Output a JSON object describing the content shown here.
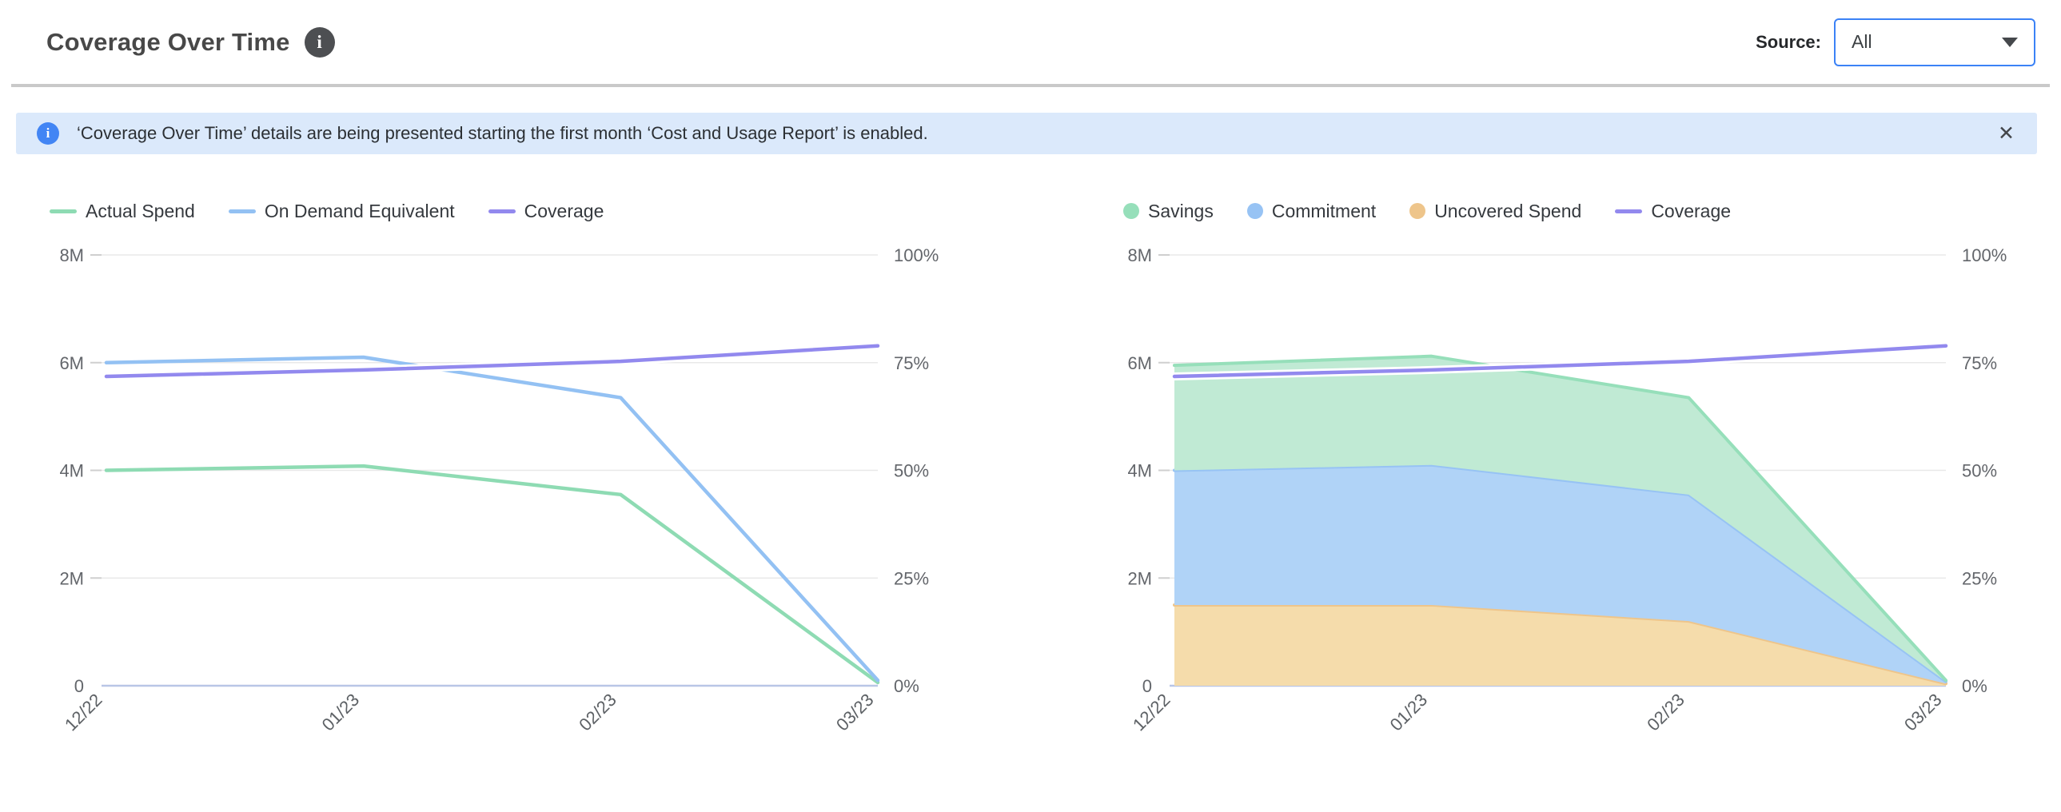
{
  "header": {
    "title": "Coverage Over Time",
    "info_glyph": "i",
    "source_label": "Source:",
    "source_value": "All"
  },
  "banner": {
    "icon_glyph": "i",
    "text": "‘Coverage Over Time’ details are being presented starting the first month ‘Cost and Usage Report’ is enabled.",
    "close_glyph": "✕"
  },
  "colors": {
    "green": "#8edbb3",
    "blue": "#93c1f3",
    "purple": "#9289ee",
    "orange": "#efc78e",
    "banner_bg": "#dbe9fb",
    "accent_blue": "#3b82f6"
  },
  "chart_data": [
    {
      "type": "line",
      "title": "",
      "x": [
        "12/22",
        "01/23",
        "02/23",
        "03/23"
      ],
      "y_left_unit": "M",
      "y_right_unit": "%",
      "y_left_max_m": 8,
      "y_right_max_pct": 100,
      "y_left_ticks": [
        "8M",
        "6M",
        "4M",
        "2M",
        "0"
      ],
      "y_right_ticks": [
        "100%",
        "75%",
        "50%",
        "25%",
        "0%"
      ],
      "grid": true,
      "legend_position": "top-left",
      "series": [
        {
          "name": "Actual Spend",
          "axis": "left",
          "color": "#8edbb3",
          "values_m": [
            4.0,
            4.08,
            3.55,
            0.06
          ]
        },
        {
          "name": "On Demand Equivalent",
          "axis": "left",
          "color": "#93c1f3",
          "values_m": [
            6.0,
            6.1,
            5.35,
            0.1
          ]
        },
        {
          "name": "Coverage",
          "axis": "right",
          "color": "#9289ee",
          "values_pct": [
            71.8,
            73.3,
            75.3,
            78.9
          ]
        }
      ]
    },
    {
      "type": "area",
      "title": "",
      "stacked": true,
      "x": [
        "12/22",
        "01/23",
        "02/23",
        "03/23"
      ],
      "y_left_unit": "M",
      "y_right_unit": "%",
      "y_left_max_m": 8,
      "y_right_max_pct": 100,
      "y_left_ticks": [
        "8M",
        "6M",
        "4M",
        "2M",
        "0"
      ],
      "y_right_ticks": [
        "100%",
        "75%",
        "50%",
        "25%",
        "0%"
      ],
      "grid": true,
      "legend_position": "top-left",
      "series": [
        {
          "name": "Savings",
          "axis": "left",
          "stack_index": 2,
          "color": "#96dfba",
          "fill": "#c0ead4",
          "values_m": [
            1.95,
            2.02,
            1.8,
            0.02
          ]
        },
        {
          "name": "Commitment",
          "axis": "left",
          "stack_index": 1,
          "color": "#97c3f4",
          "fill": "#b0d3f7",
          "values_m": [
            2.5,
            2.6,
            2.35,
            0.04
          ]
        },
        {
          "name": "Uncovered Spend",
          "axis": "left",
          "stack_index": 0,
          "color": "#eec58b",
          "fill": "#f5dcab",
          "values_m": [
            1.5,
            1.5,
            1.2,
            0.04
          ]
        },
        {
          "name": "Coverage",
          "axis": "right",
          "color": "#9289ee",
          "values_pct": [
            71.8,
            73.3,
            75.3,
            78.9
          ]
        }
      ]
    }
  ]
}
